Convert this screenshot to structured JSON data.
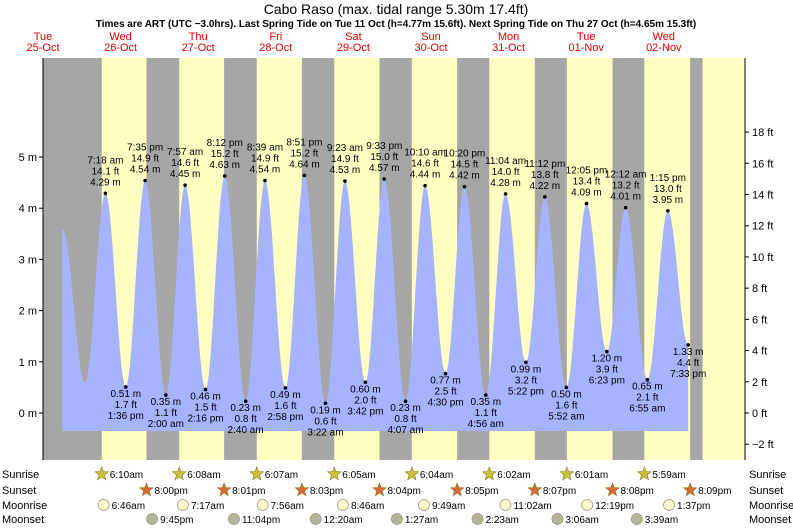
{
  "chart_data": {
    "type": "area",
    "title": "Cabo Raso (max. tidal range 5.30m 17.4ft)",
    "subtitle": "Times are ART (UTC −3.0hrs). Last Spring Tide on Tue 11 Oct (h=4.77m 15.6ft). Next Spring Tide on Thu 27 Oct (h=4.65m 15.3ft)",
    "days": [
      {
        "dow": "Tue",
        "date": "25-Oct"
      },
      {
        "dow": "Wed",
        "date": "26-Oct"
      },
      {
        "dow": "Thu",
        "date": "27-Oct"
      },
      {
        "dow": "Fri",
        "date": "28-Oct"
      },
      {
        "dow": "Sat",
        "date": "29-Oct"
      },
      {
        "dow": "Sun",
        "date": "30-Oct"
      },
      {
        "dow": "Mon",
        "date": "31-Oct"
      },
      {
        "dow": "Tue",
        "date": "01-Nov"
      },
      {
        "dow": "Wed",
        "date": "02-Nov"
      }
    ],
    "y_left_ticks": [
      "0 m",
      "1 m",
      "2 m",
      "3 m",
      "4 m",
      "5 m"
    ],
    "y_left_range_m": [
      -0.3,
      5.3
    ],
    "y_right_ticks": [
      "−2 ft",
      "0 ft",
      "2 ft",
      "4 ft",
      "6 ft",
      "8 ft",
      "10 ft",
      "12 ft",
      "14 ft",
      "16 ft",
      "18 ft"
    ],
    "tides": [
      {
        "t": "2022-10-25T18:00",
        "h": 3.6,
        "text": []
      },
      {
        "t": "2022-10-26T01:00",
        "h": 0.58,
        "text": []
      },
      {
        "t": "2022-10-26T07:18",
        "h": 4.29,
        "type": "high",
        "text": [
          "7:18 am",
          "14.1 ft",
          "4.29 m"
        ]
      },
      {
        "t": "2022-10-26T13:36",
        "h": 0.51,
        "type": "low",
        "text": [
          "0.51 m",
          "1.7 ft",
          "1:36 pm"
        ]
      },
      {
        "t": "2022-10-26T19:35",
        "h": 4.54,
        "type": "high",
        "text": [
          "7:35 pm",
          "14.9 ft",
          "4.54 m"
        ]
      },
      {
        "t": "2022-10-27T02:00",
        "h": 0.35,
        "type": "low",
        "text": [
          "0.35 m",
          "1.1 ft",
          "2:00 am"
        ]
      },
      {
        "t": "2022-10-27T07:57",
        "h": 4.45,
        "type": "high",
        "text": [
          "7:57 am",
          "14.6 ft",
          "4.45 m"
        ]
      },
      {
        "t": "2022-10-27T14:16",
        "h": 0.46,
        "type": "low",
        "text": [
          "0.46 m",
          "1.5 ft",
          "2:16 pm"
        ]
      },
      {
        "t": "2022-10-27T20:12",
        "h": 4.63,
        "type": "high",
        "text": [
          "8:12 pm",
          "15.2 ft",
          "4.63 m"
        ]
      },
      {
        "t": "2022-10-28T02:40",
        "h": 0.23,
        "type": "low",
        "text": [
          "0.23 m",
          "0.8 ft",
          "2:40 am"
        ]
      },
      {
        "t": "2022-10-28T08:39",
        "h": 4.54,
        "type": "high",
        "text": [
          "8:39 am",
          "14.9 ft",
          "4.54 m"
        ]
      },
      {
        "t": "2022-10-28T14:58",
        "h": 0.49,
        "type": "low",
        "text": [
          "0.49 m",
          "1.6 ft",
          "2:58 pm"
        ]
      },
      {
        "t": "2022-10-28T20:51",
        "h": 4.64,
        "type": "high",
        "text": [
          "8:51 pm",
          "15.2 ft",
          "4.64 m"
        ]
      },
      {
        "t": "2022-10-29T03:22",
        "h": 0.19,
        "type": "low",
        "text": [
          "0.19 m",
          "0.6 ft",
          "3:22 am"
        ]
      },
      {
        "t": "2022-10-29T09:23",
        "h": 4.53,
        "type": "high",
        "text": [
          "9:23 am",
          "14.9 ft",
          "4.53 m"
        ]
      },
      {
        "t": "2022-10-29T15:42",
        "h": 0.6,
        "type": "low",
        "text": [
          "0.60 m",
          "2.0 ft",
          "3:42 pm"
        ]
      },
      {
        "t": "2022-10-29T21:33",
        "h": 4.57,
        "type": "high",
        "text": [
          "9:33 pm",
          "15.0 ft",
          "4.57 m"
        ]
      },
      {
        "t": "2022-10-30T04:07",
        "h": 0.23,
        "type": "low",
        "text": [
          "0.23 m",
          "0.8 ft",
          "4:07 am"
        ]
      },
      {
        "t": "2022-10-30T10:10",
        "h": 4.44,
        "type": "high",
        "text": [
          "10:10 am",
          "14.6 ft",
          "4.44 m"
        ]
      },
      {
        "t": "2022-10-30T16:30",
        "h": 0.77,
        "type": "low",
        "text": [
          "0.77 m",
          "2.5 ft",
          "4:30 pm"
        ]
      },
      {
        "t": "2022-10-30T22:20",
        "h": 4.42,
        "type": "high",
        "text": [
          "10:20 pm",
          "14.5 ft",
          "4.42 m"
        ]
      },
      {
        "t": "2022-10-31T04:56",
        "h": 0.35,
        "type": "low",
        "text": [
          "0.35 m",
          "1.1 ft",
          "4:56 am"
        ]
      },
      {
        "t": "2022-10-31T11:04",
        "h": 4.28,
        "type": "high",
        "text": [
          "11:04 am",
          "14.0 ft",
          "4.28 m"
        ]
      },
      {
        "t": "2022-10-31T17:22",
        "h": 0.99,
        "type": "low",
        "text": [
          "0.99 m",
          "3.2 ft",
          "5:22 pm"
        ]
      },
      {
        "t": "2022-10-31T23:12",
        "h": 4.22,
        "type": "high",
        "text": [
          "11:12 pm",
          "13.8 ft",
          "4.22 m"
        ]
      },
      {
        "t": "2022-11-01T05:52",
        "h": 0.5,
        "type": "low",
        "text": [
          "0.50 m",
          "1.6 ft",
          "5:52 am"
        ]
      },
      {
        "t": "2022-11-01T12:05",
        "h": 4.09,
        "type": "high",
        "text": [
          "12:05 pm",
          "13.4 ft",
          "4.09 m"
        ]
      },
      {
        "t": "2022-11-01T18:23",
        "h": 1.2,
        "type": "low",
        "text": [
          "1.20 m",
          "3.9 ft",
          "6:23 pm"
        ]
      },
      {
        "t": "2022-11-02T00:12",
        "h": 4.01,
        "type": "high",
        "text": [
          "12:12 am",
          "13.2 ft",
          "4.01 m"
        ]
      },
      {
        "t": "2022-11-02T06:55",
        "h": 0.65,
        "type": "low",
        "text": [
          "0.65 m",
          "2.1 ft",
          "6:55 am"
        ]
      },
      {
        "t": "2022-11-02T13:15",
        "h": 3.95,
        "type": "high",
        "text": [
          "1:15 pm",
          "13.0 ft",
          "3.95 m"
        ]
      },
      {
        "t": "2022-11-02T19:33",
        "h": 1.33,
        "type": "low",
        "text": [
          "1.33 m",
          "4.4 ft",
          "7:33 pm"
        ]
      }
    ],
    "night_shading": [
      {
        "from": "2022-10-25T00:00",
        "to": "2022-10-26T06:10"
      },
      {
        "from": "2022-10-26T20:00",
        "to": "2022-10-27T06:08"
      },
      {
        "from": "2022-10-27T20:01",
        "to": "2022-10-28T06:07"
      },
      {
        "from": "2022-10-28T20:03",
        "to": "2022-10-29T06:05"
      },
      {
        "from": "2022-10-29T20:04",
        "to": "2022-10-30T06:04"
      },
      {
        "from": "2022-10-30T20:05",
        "to": "2022-10-31T06:02"
      },
      {
        "from": "2022-10-31T20:07",
        "to": "2022-11-01T06:01"
      },
      {
        "from": "2022-11-01T20:08",
        "to": "2022-11-02T05:59"
      },
      {
        "from": "2022-11-02T20:09",
        "to": "2022-11-03T00:00"
      }
    ],
    "sunrise": [
      {
        "t": "2022-10-26T06:10",
        "label": "6:10am"
      },
      {
        "t": "2022-10-27T06:08",
        "label": "6:08am"
      },
      {
        "t": "2022-10-28T06:07",
        "label": "6:07am"
      },
      {
        "t": "2022-10-29T06:05",
        "label": "6:05am"
      },
      {
        "t": "2022-10-30T06:04",
        "label": "6:04am"
      },
      {
        "t": "2022-10-31T06:02",
        "label": "6:02am"
      },
      {
        "t": "2022-11-01T06:01",
        "label": "6:01am"
      },
      {
        "t": "2022-11-02T05:59",
        "label": "5:59am"
      }
    ],
    "sunset": [
      {
        "t": "2022-10-26T20:00",
        "label": "8:00pm"
      },
      {
        "t": "2022-10-27T20:01",
        "label": "8:01pm"
      },
      {
        "t": "2022-10-28T20:03",
        "label": "8:03pm"
      },
      {
        "t": "2022-10-29T20:04",
        "label": "8:04pm"
      },
      {
        "t": "2022-10-30T20:05",
        "label": "8:05pm"
      },
      {
        "t": "2022-10-31T20:07",
        "label": "8:07pm"
      },
      {
        "t": "2022-11-01T20:08",
        "label": "8:08pm"
      },
      {
        "t": "2022-11-02T20:09",
        "label": "8:09pm"
      }
    ],
    "moonrise": [
      {
        "t": "2022-10-26T06:46",
        "label": "6:46am"
      },
      {
        "t": "2022-10-27T07:17",
        "label": "7:17am"
      },
      {
        "t": "2022-10-28T07:56",
        "label": "7:56am"
      },
      {
        "t": "2022-10-29T08:46",
        "label": "8:46am"
      },
      {
        "t": "2022-10-30T09:49",
        "label": "9:49am"
      },
      {
        "t": "2022-10-31T11:02",
        "label": "11:02am"
      },
      {
        "t": "2022-11-01T12:19",
        "label": "12:19pm"
      },
      {
        "t": "2022-11-02T13:37",
        "label": "1:37pm"
      }
    ],
    "moonset": [
      {
        "t": "2022-10-26T21:45",
        "label": "9:45pm"
      },
      {
        "t": "2022-10-27T23:04",
        "label": "11:04pm"
      },
      {
        "t": "2022-10-29T00:20",
        "label": "12:20am"
      },
      {
        "t": "2022-10-30T01:27",
        "label": "1:27am"
      },
      {
        "t": "2022-10-31T02:23",
        "label": "2:23am"
      },
      {
        "t": "2022-11-01T03:06",
        "label": "3:06am"
      },
      {
        "t": "2022-11-02T03:39",
        "label": "3:39am"
      }
    ],
    "row_labels": {
      "sunrise": "Sunrise",
      "sunset": "Sunset",
      "moonrise": "Moonrise",
      "moonset": "Moonset"
    },
    "colors": {
      "day": "#ffffc4",
      "night": "#a6a6a6",
      "water": "#a6b4ff",
      "sun_rise": "#c8c23a",
      "sun_set": "#d6683a",
      "moon_rise": "#fffbd0",
      "moon_set": "#b4b49c",
      "day_header": "#e00000"
    }
  }
}
